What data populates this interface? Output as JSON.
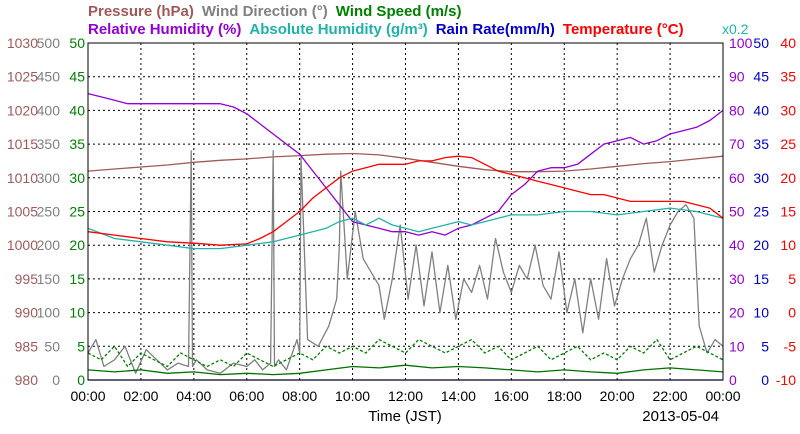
{
  "chart_data": {
    "type": "line",
    "date_label": "2013-05-04",
    "x_axis": {
      "label": "Time (JST)",
      "ticks": [
        "00:00",
        "02:00",
        "04:00",
        "06:00",
        "08:00",
        "10:00",
        "12:00",
        "14:00",
        "16:00",
        "18:00",
        "20:00",
        "22:00",
        "00:00"
      ],
      "range_hours": [
        0,
        24
      ]
    },
    "header": {
      "row1": [
        {
          "text": "Pressure (hPa)",
          "color": "#a05a5a"
        },
        {
          "text": "Wind Direction (°)",
          "color": "#808080"
        },
        {
          "text": "Wind Speed (m/s)",
          "color": "#008000"
        }
      ],
      "row2": [
        {
          "text": "Relative Humidity (%)",
          "color": "#9400d3"
        },
        {
          "text": "Absolute Humidity (g/m³)",
          "color": "#20b2aa"
        },
        {
          "text": "Rain Rate(mm/h)",
          "color": "#0000cc"
        },
        {
          "text": "Temperature (°C)",
          "color": "#ff0000"
        }
      ],
      "rain_scale": {
        "text": "x0.2",
        "color": "#20b2aa"
      }
    },
    "axes": {
      "pressure": {
        "ticks": [
          "1030",
          "1025",
          "1020",
          "1015",
          "1010",
          "1005",
          "1000",
          "995",
          "990",
          "985",
          "980"
        ],
        "range": [
          980,
          1030
        ],
        "color": "#a05a5a"
      },
      "wind_direction": {
        "ticks": [
          "500",
          "450",
          "400",
          "350",
          "300",
          "250",
          "200",
          "150",
          "100",
          "50",
          "0"
        ],
        "range": [
          0,
          500
        ],
        "color": "#808080"
      },
      "wind_speed": {
        "ticks": [
          "50",
          "45",
          "40",
          "35",
          "30",
          "25",
          "20",
          "15",
          "10",
          "5",
          "0"
        ],
        "range": [
          0,
          50
        ],
        "color": "#008000"
      },
      "humidity": {
        "ticks": [
          "100",
          "90",
          "80",
          "70",
          "60",
          "50",
          "40",
          "30",
          "20",
          "10",
          "0"
        ],
        "range": [
          0,
          100
        ],
        "color": "#9400d3"
      },
      "rain_rate": {
        "ticks": [
          "50",
          "45",
          "40",
          "35",
          "30",
          "25",
          "20",
          "15",
          "10",
          "5",
          "0"
        ],
        "range": [
          0,
          50
        ],
        "color": "#0000cc"
      },
      "temperature": {
        "ticks": [
          "40",
          "35",
          "30",
          "25",
          "20",
          "15",
          "10",
          "5",
          "0",
          "-5",
          "-10"
        ],
        "range": [
          -10,
          40
        ],
        "color": "#ff0000"
      }
    },
    "grid": true,
    "series": [
      {
        "name": "Pressure (hPa)",
        "axis": "pressure",
        "color": "#a05a5a",
        "style": "solid",
        "x": [
          0,
          1,
          2,
          3,
          4,
          5,
          6,
          7,
          8,
          9,
          10,
          11,
          12,
          13,
          14,
          15,
          16,
          17,
          18,
          19,
          20,
          21,
          22,
          23,
          24
        ],
        "y": [
          1011,
          1011.3,
          1011.6,
          1011.9,
          1012.3,
          1012.6,
          1012.8,
          1013.1,
          1013.3,
          1013.5,
          1013.6,
          1013.4,
          1012.9,
          1012.3,
          1011.7,
          1011.2,
          1010.9,
          1010.9,
          1011,
          1011.3,
          1011.7,
          1012.1,
          1012.4,
          1012.8,
          1013.2
        ]
      },
      {
        "name": "Wind Direction (°)",
        "axis": "wind_direction",
        "color": "#808080",
        "style": "solid",
        "x": [
          0,
          0.3,
          0.6,
          1,
          1.4,
          1.8,
          2.2,
          2.6,
          3,
          3.4,
          3.8,
          3.9,
          3.95,
          4.1,
          4.5,
          5,
          5.5,
          6,
          6.3,
          6.6,
          6.9,
          7,
          7.05,
          7.2,
          7.5,
          7.9,
          8,
          8.05,
          8.3,
          8.7,
          9.1,
          9.4,
          9.5,
          9.55,
          9.8,
          10.1,
          10.4,
          10.7,
          11,
          11.2,
          11.5,
          11.8,
          12.1,
          12.4,
          12.7,
          13,
          13.3,
          13.6,
          13.9,
          14.2,
          14.5,
          14.8,
          15.1,
          15.4,
          15.7,
          16,
          16.3,
          16.6,
          16.9,
          17.2,
          17.5,
          17.8,
          18.1,
          18.4,
          18.7,
          19,
          19.3,
          19.6,
          19.9,
          20.2,
          20.5,
          20.8,
          21.1,
          21.4,
          21.7,
          22,
          22.3,
          22.6,
          22.9,
          23.1,
          23.4,
          23.7,
          24
        ],
        "y": [
          40,
          60,
          20,
          30,
          50,
          10,
          45,
          30,
          15,
          25,
          20,
          340,
          20,
          30,
          15,
          10,
          25,
          20,
          30,
          15,
          25,
          340,
          20,
          30,
          15,
          60,
          40,
          330,
          60,
          50,
          80,
          120,
          200,
          310,
          150,
          250,
          180,
          160,
          140,
          90,
          150,
          230,
          120,
          200,
          110,
          190,
          100,
          170,
          90,
          150,
          130,
          170,
          120,
          210,
          160,
          130,
          170,
          150,
          200,
          140,
          120,
          190,
          100,
          150,
          70,
          150,
          90,
          180,
          110,
          150,
          180,
          200,
          240,
          160,
          200,
          230,
          250,
          260,
          240,
          80,
          40,
          60,
          50
        ]
      },
      {
        "name": "Wind Speed (m/s)",
        "axis": "wind_speed",
        "color": "#008000",
        "style": "dashed",
        "x": [
          0,
          0.5,
          1,
          1.5,
          2,
          2.5,
          3,
          3.5,
          4,
          4.5,
          5,
          5.5,
          6,
          6.5,
          7,
          7.5,
          8,
          8.5,
          9,
          9.5,
          10,
          10.5,
          11,
          11.5,
          12,
          12.5,
          13,
          13.5,
          14,
          14.5,
          15,
          15.5,
          16,
          16.5,
          17,
          17.5,
          18,
          18.5,
          19,
          19.5,
          20,
          20.5,
          21,
          21.5,
          22,
          22.5,
          23,
          23.5,
          24
        ],
        "y": [
          4,
          3,
          5,
          2,
          4,
          3,
          2,
          4,
          3,
          2,
          3,
          2,
          4,
          3,
          2,
          3,
          4,
          3,
          5,
          4,
          5,
          4,
          6,
          5,
          4,
          6,
          5,
          4,
          5,
          6,
          4,
          5,
          3,
          4,
          5,
          3,
          4,
          5,
          3,
          4,
          3,
          5,
          4,
          6,
          3,
          4,
          5,
          4,
          3
        ]
      },
      {
        "name": "Wind Speed (m/s)",
        "axis": "wind_speed",
        "color": "#007000",
        "style": "solid",
        "x": [
          0,
          1,
          2,
          3,
          4,
          5,
          6,
          7,
          8,
          9,
          10,
          11,
          12,
          13,
          14,
          15,
          16,
          17,
          18,
          19,
          20,
          21,
          22,
          23,
          24
        ],
        "y": [
          1.5,
          1.2,
          1.5,
          1,
          1.2,
          0.8,
          1,
          0.8,
          1,
          1.5,
          2,
          1.8,
          2.2,
          1.8,
          2,
          1.8,
          1.5,
          1.2,
          1.5,
          1.2,
          1,
          1.5,
          1.8,
          1.5,
          1.2
        ]
      },
      {
        "name": "Relative Humidity (%)",
        "axis": "humidity",
        "color": "#9400d3",
        "style": "solid",
        "x": [
          0,
          0.5,
          1,
          1.5,
          2,
          3,
          4,
          5,
          5.5,
          6,
          6.5,
          7,
          7.5,
          8,
          8.5,
          9,
          9.5,
          10,
          10.5,
          11,
          11.5,
          12,
          12.5,
          13,
          13.5,
          14,
          14.5,
          15,
          15.5,
          16,
          16.5,
          17,
          17.5,
          18,
          18.5,
          19,
          19.5,
          20,
          20.5,
          21,
          21.5,
          22,
          22.5,
          23,
          23.5,
          24
        ],
        "y": [
          85,
          84,
          83,
          82,
          82,
          82,
          82,
          82,
          81,
          79,
          76,
          73,
          70,
          67,
          62,
          57,
          52,
          47,
          46,
          45,
          44,
          44,
          43,
          44,
          43,
          45,
          46,
          48,
          50,
          55,
          58,
          62,
          63,
          63,
          64,
          67,
          70,
          71,
          72,
          70,
          71,
          73,
          74,
          75,
          77,
          80
        ]
      },
      {
        "name": "Absolute Humidity (g/m³)",
        "axis": "wind_speed",
        "color": "#20b2aa",
        "style": "solid",
        "x": [
          0,
          1,
          2,
          3,
          4,
          5,
          6,
          7,
          8,
          9,
          9.5,
          10,
          10.5,
          11,
          11.5,
          12,
          12.5,
          13,
          13.5,
          14,
          14.5,
          15,
          15.5,
          16,
          17,
          18,
          19,
          20,
          21,
          22,
          23,
          24
        ],
        "y": [
          22.5,
          21,
          20.5,
          20,
          19.5,
          19.5,
          20,
          20.5,
          21.5,
          22.5,
          23.5,
          24,
          23,
          24,
          23,
          22.5,
          22,
          22.5,
          23,
          23.5,
          23,
          23.5,
          24,
          24.5,
          24.5,
          25,
          25,
          24.5,
          25,
          25.5,
          25,
          24
        ]
      },
      {
        "name": "Rain Rate(mm/h)",
        "axis": "rain_rate",
        "color": "#0000cc",
        "style": "solid",
        "x": [
          0,
          24
        ],
        "y": [
          0,
          0
        ]
      },
      {
        "name": "Temperature (°C)",
        "axis": "temperature",
        "color": "#ff0000",
        "style": "solid",
        "x": [
          0,
          1,
          2,
          3,
          4,
          5,
          6,
          6.5,
          7,
          7.5,
          8,
          8.5,
          9,
          9.5,
          10,
          10.5,
          11,
          11.5,
          12,
          12.5,
          13,
          13.5,
          14,
          14.5,
          15,
          15.5,
          16,
          16.5,
          17,
          17.5,
          18,
          18.5,
          19,
          19.5,
          20,
          20.5,
          21,
          21.5,
          22,
          22.5,
          23,
          23.5,
          24
        ],
        "y": [
          12,
          11.5,
          11,
          10.5,
          10.3,
          10,
          10.2,
          11,
          12,
          13.5,
          15,
          17,
          18.5,
          20,
          21,
          21.5,
          22,
          22,
          22,
          22.5,
          22.5,
          23,
          23.2,
          23,
          22,
          21,
          20.5,
          20,
          19.5,
          19,
          18.5,
          18,
          17.5,
          17.5,
          17,
          16.5,
          16.5,
          16.5,
          16.5,
          16.5,
          16,
          15.5,
          14
        ]
      }
    ]
  }
}
